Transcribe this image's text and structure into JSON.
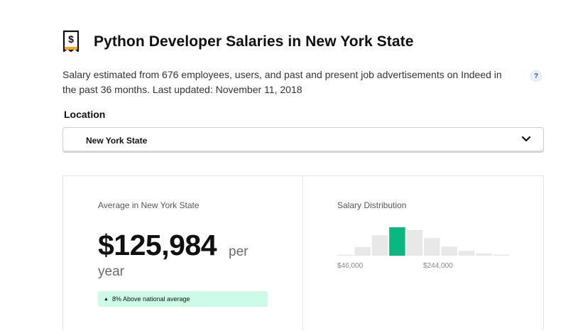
{
  "header": {
    "title": "Python Developer Salaries in New York State",
    "icon": "salary-document-icon"
  },
  "description": "Salary estimated from 676 employees, users, and past and present job advertisements on Indeed in the past 36 months. Last updated: November 11, 2018",
  "help": {
    "label": "?"
  },
  "location": {
    "label": "Location",
    "selected": "New York State"
  },
  "average": {
    "label": "Average in New York State",
    "amount": "$125,984",
    "per": "per",
    "period": "year",
    "comparison": "8% Above national average",
    "comparison_color": "#ccfbe8"
  },
  "distribution": {
    "label": "Salary Distribution",
    "tick_low": "$46,000",
    "tick_high": "$244,000",
    "bar_color": "#e8e8e8",
    "highlight_color": "#0cb680",
    "highlight_index": 3,
    "bars": [
      0.04,
      0.3,
      0.72,
      1.0,
      0.9,
      0.62,
      0.32,
      0.17,
      0.08,
      0.04
    ]
  }
}
